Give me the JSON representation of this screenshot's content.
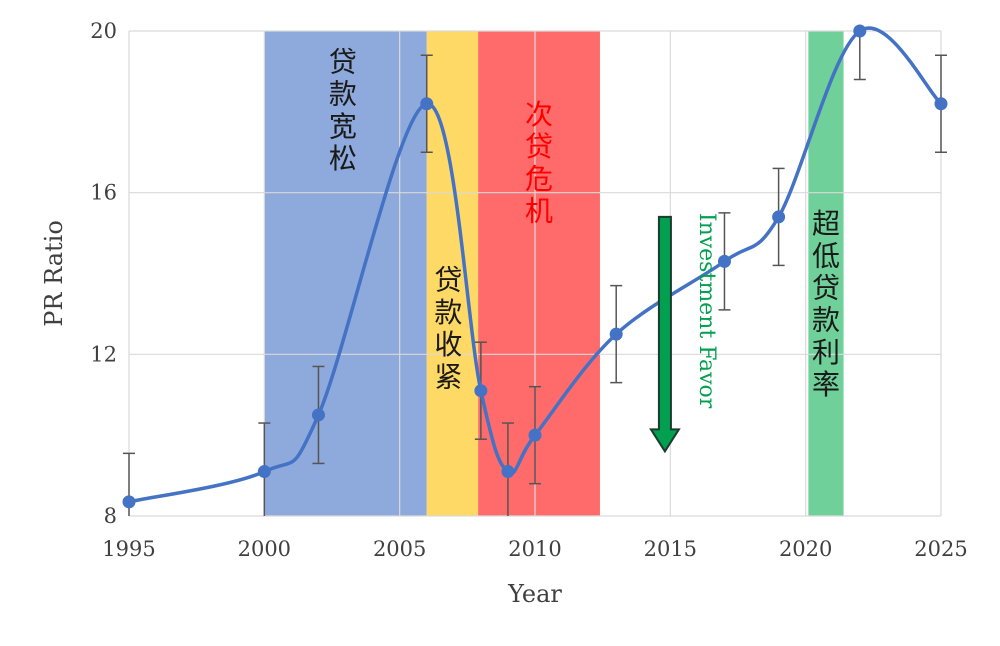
{
  "chart_data": {
    "type": "line",
    "xlabel": "Year",
    "ylabel": "PR Ratio",
    "xlim": [
      1995,
      2025
    ],
    "ylim": [
      8,
      20
    ],
    "x_ticks": [
      1995,
      2000,
      2005,
      2010,
      2015,
      2020,
      2025
    ],
    "y_ticks": [
      8,
      12,
      16,
      20
    ],
    "grid": true,
    "series": [
      {
        "color": "#4472C4",
        "x": [
          1995,
          2000,
          2002,
          2006,
          2008,
          2009,
          2010,
          2013,
          2017,
          2019,
          2022,
          2025
        ],
        "y": [
          8.35,
          9.1,
          10.5,
          18.2,
          11.1,
          9.1,
          10.0,
          12.5,
          14.3,
          15.4,
          20.0,
          18.2
        ],
        "error": [
          1.2,
          1.2,
          1.2,
          1.2,
          1.2,
          1.2,
          1.2,
          1.2,
          1.2,
          1.2,
          1.2,
          1.2
        ]
      }
    ],
    "regions": [
      {
        "label": "贷款宽松",
        "x_start": 2000,
        "x_end": 2006,
        "color": "#8EA9DB",
        "text_color": "#1a1a1a",
        "label_x": 2002.9,
        "label_y": 19.0
      },
      {
        "label": "贷款收紧",
        "x_start": 2006,
        "x_end": 2007.9,
        "color": "#FFD966",
        "text_color": "#1a1a1a",
        "label_x": 2006.8,
        "label_y": 13.6
      },
      {
        "label": "次贷危机",
        "x_start": 2007.9,
        "x_end": 2012.4,
        "color": "#FF6B6B",
        "text_color": "#FF0000",
        "label_x": 2010.15,
        "label_y": 17.7
      },
      {
        "label": "超低贷款利率",
        "x_start": 2020.1,
        "x_end": 2021.4,
        "color": "#70D09A",
        "text_color": "#1a1a1a",
        "label_x": 2020.75,
        "label_y": 15.0
      }
    ],
    "annotation": {
      "text": "Investment Favor",
      "color": "#00A050",
      "arrow_color": "#00A050",
      "arrow_x": 2014.8,
      "arrow_from_y": 15.4,
      "arrow_to_y": 9.6,
      "text_x": 2016.1,
      "text_y": 15.5
    }
  }
}
